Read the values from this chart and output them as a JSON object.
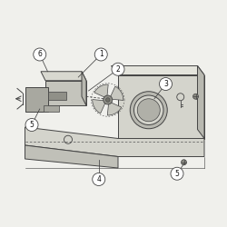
{
  "background_color": "#f0f0ec",
  "line_color": "#444444",
  "label_circle_color": "#ffffff",
  "label_circle_edge": "#444444",
  "label_font_size": 5.5,
  "panel_face": "#d4d4cc",
  "panel_top": "#e4e4dc",
  "panel_right": "#b8b8b0",
  "motor_face": "#c4c4bc",
  "motor_top": "#d8d8d0",
  "motor_dark": "#a8a8a0",
  "shelf_face": "#c0c0b8"
}
